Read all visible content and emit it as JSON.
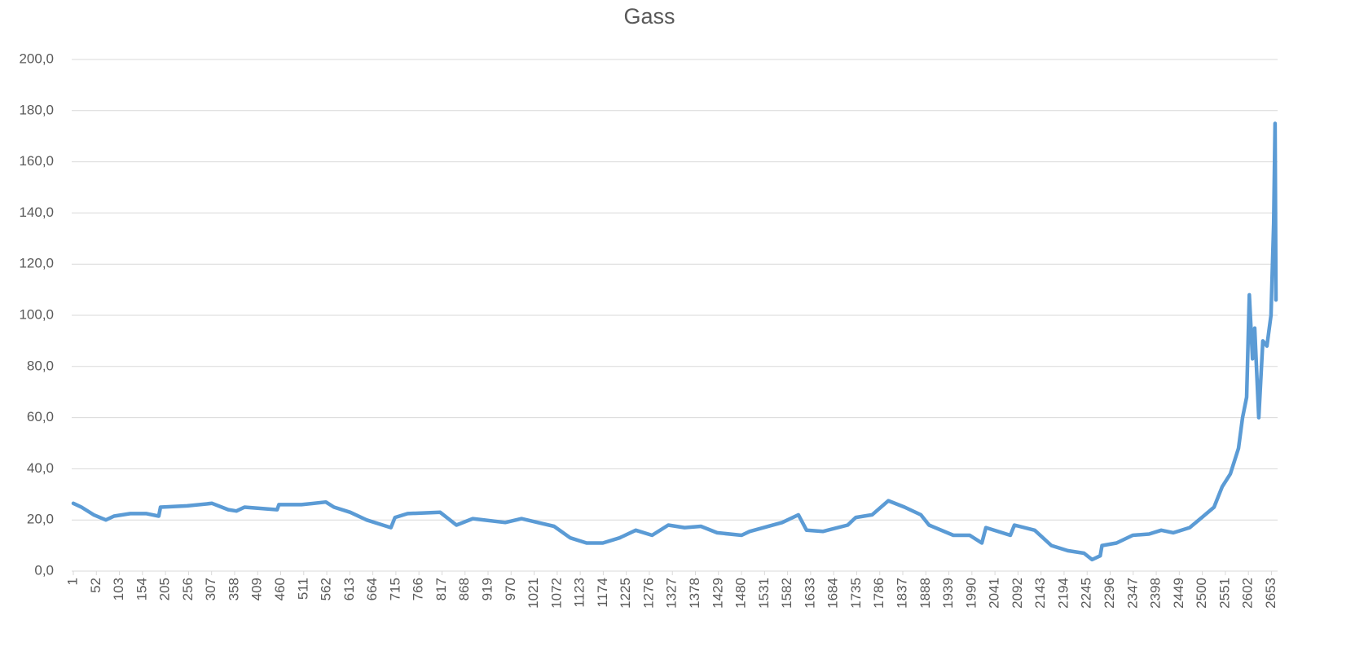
{
  "chart_data": {
    "type": "line",
    "title": "Gass",
    "x": [
      1,
      19,
      46,
      73,
      91,
      127,
      163,
      190,
      194,
      253,
      308,
      344,
      362,
      380,
      452,
      456,
      506,
      560,
      578,
      614,
      650,
      686,
      704,
      713,
      741,
      813,
      849,
      885,
      957,
      993,
      1065,
      1101,
      1137,
      1173,
      1210,
      1246,
      1282,
      1318,
      1354,
      1390,
      1426,
      1480,
      1498,
      1570,
      1606,
      1624,
      1660,
      1715,
      1733,
      1769,
      1805,
      1841,
      1877,
      1895,
      1949,
      1985,
      2012,
      2021,
      2075,
      2084,
      2129,
      2166,
      2202,
      2238,
      2256,
      2274,
      2278,
      2310,
      2346,
      2382,
      2409,
      2436,
      2472,
      2499,
      2526,
      2544,
      2562,
      2580,
      2589,
      2598,
      2604,
      2611,
      2616,
      2625,
      2634,
      2643,
      2652,
      2658,
      2661,
      2663
    ],
    "series": [
      {
        "name": "Gass",
        "color": "#5b9bd5",
        "values": [
          26.5,
          25,
          22,
          20,
          21.5,
          22.5,
          22.5,
          21.5,
          25,
          25.5,
          26.5,
          24,
          23.5,
          25,
          24,
          26,
          26,
          27,
          25,
          23,
          20,
          18,
          17,
          21,
          22.5,
          23,
          18,
          20.5,
          19,
          20.5,
          17.5,
          13,
          11,
          11,
          13,
          16,
          14,
          18,
          17,
          17.5,
          15,
          14,
          15.5,
          19,
          22,
          16,
          15.5,
          18,
          21,
          22,
          27.5,
          25,
          22,
          18,
          14,
          14,
          11,
          17,
          14,
          18,
          16,
          10,
          8,
          7,
          4.5,
          6,
          10,
          11,
          14,
          14.5,
          16,
          15,
          17,
          21,
          25,
          33,
          38,
          48,
          60,
          68,
          108,
          83,
          95,
          60,
          90,
          88,
          100,
          136,
          175,
          106
        ]
      }
    ],
    "xlim": [
      1,
      2663
    ],
    "xticks": [
      1,
      52,
      103,
      154,
      205,
      256,
      307,
      358,
      409,
      460,
      511,
      562,
      613,
      664,
      715,
      766,
      817,
      868,
      919,
      970,
      1021,
      1072,
      1123,
      1174,
      1225,
      1276,
      1327,
      1378,
      1429,
      1480,
      1531,
      1582,
      1633,
      1684,
      1735,
      1786,
      1837,
      1888,
      1939,
      1990,
      2041,
      2092,
      2143,
      2194,
      2245,
      2296,
      2347,
      2398,
      2449,
      2500,
      2551,
      2602,
      2653
    ],
    "ylim": [
      0,
      200
    ],
    "yticks": [
      {
        "value": 0,
        "label": "0,0"
      },
      {
        "value": 20,
        "label": "20,0"
      },
      {
        "value": 40,
        "label": "40,0"
      },
      {
        "value": 60,
        "label": "60,0"
      },
      {
        "value": 80,
        "label": "80,0"
      },
      {
        "value": 100,
        "label": "100,0"
      },
      {
        "value": 120,
        "label": "120,0"
      },
      {
        "value": 140,
        "label": "140,0"
      },
      {
        "value": 160,
        "label": "160,0"
      },
      {
        "value": 180,
        "label": "180,0"
      },
      {
        "value": 200,
        "label": "200,0"
      }
    ],
    "grid": true
  }
}
